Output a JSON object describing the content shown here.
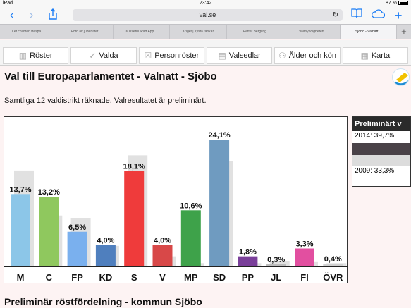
{
  "status": {
    "device": "iPad",
    "time": "23:42",
    "battery": "87 %"
  },
  "browser": {
    "url": "val.se",
    "tabs": [
      {
        "label": "Let children trespa...",
        "active": false
      },
      {
        "label": "Foto av judehatet",
        "active": false
      },
      {
        "label": "6 Useful iPad App...",
        "active": false
      },
      {
        "label": "Kriget | Tysta tankar",
        "active": false
      },
      {
        "label": "Petter Bergling",
        "active": false
      },
      {
        "label": "Valmyndigheten",
        "active": false
      },
      {
        "label": "Sjöbo - Valnatt...",
        "active": true
      }
    ]
  },
  "nav": [
    {
      "label": "Röster",
      "icon": "bar-chart-icon"
    },
    {
      "label": "Valda",
      "icon": "check-icon"
    },
    {
      "label": "Personröster",
      "icon": "person-box-icon"
    },
    {
      "label": "Valsedlar",
      "icon": "ballot-icon"
    },
    {
      "label": "Ålder och kön",
      "icon": "people-icon"
    },
    {
      "label": "Karta",
      "icon": "map-icon"
    }
  ],
  "page": {
    "title": "Val till Europaparlamentet - Valnatt - Sjöbo",
    "subtitle": "Samtliga 12 valdistrikt räknade. Valresultatet är preliminärt."
  },
  "side": {
    "heading": "Preliminärt v",
    "line1": "2014: 39,7%",
    "line2": "2009: 33,3%"
  },
  "section_title": "Preliminär röstfördelning - kommun Sjöbo",
  "chart_data": {
    "type": "bar",
    "categories": [
      "M",
      "C",
      "FP",
      "KD",
      "S",
      "V",
      "MP",
      "SD",
      "PP",
      "JL",
      "FI",
      "ÖVR"
    ],
    "series": [
      {
        "values": [
          13.7,
          13.2,
          6.5,
          4.0,
          18.1,
          4.0,
          10.6,
          24.1,
          1.8,
          0.3,
          3.3,
          0.4
        ]
      },
      {
        "values": [
          18.2,
          9.6,
          9.1,
          3.8,
          21.1,
          1.8,
          0.5,
          20.0,
          0.5,
          0.9,
          0.7,
          0.5
        ]
      }
    ],
    "data_labels": [
      "13,7%",
      "13,2%",
      "6,5%",
      "4,0%",
      "18,1%",
      "4,0%",
      "10,6%",
      "24,1%",
      "1,8%",
      "0,3%",
      "3,3%",
      "0,4%"
    ],
    "colors": [
      "#8cc6e8",
      "#8fc85e",
      "#7ab0ee",
      "#4f7fbe",
      "#ef3b3b",
      "#d84848",
      "#3ea24a",
      "#6f9bc0",
      "#7a3f9a",
      "#bdbdbd",
      "#e24fa0",
      "#d0d0d0"
    ],
    "prev_color": "#e1e1e1",
    "ylim": [
      0,
      26
    ]
  }
}
